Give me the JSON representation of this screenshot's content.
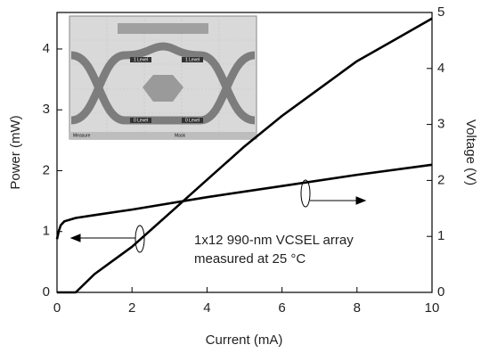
{
  "chart_data": {
    "type": "line",
    "x_label": "Current (mA)",
    "y_label": "Power (mW)",
    "y2_label": "Voltage (V)",
    "annotation": [
      "1x12 990-nm VCSEL array",
      "measured at 25 °C"
    ],
    "inset_labels": [
      "1 Level",
      "1 Level",
      "0 Level",
      "0 Level",
      "Measure",
      "Mask"
    ],
    "xlim": [
      0,
      10
    ],
    "xticks": [
      0,
      2,
      4,
      6,
      8,
      10
    ],
    "ylim": [
      0,
      4.6
    ],
    "yticks": [
      0,
      1,
      2,
      3,
      4
    ],
    "y2lim": [
      0,
      5
    ],
    "y2ticks": [
      0,
      1,
      2,
      3,
      4,
      5
    ],
    "series": [
      {
        "color": "#000000",
        "x": [
          0,
          0.5,
          1,
          2,
          3,
          4,
          5,
          6,
          7,
          8,
          9,
          10
        ],
        "values": [
          0,
          0,
          0.3,
          0.75,
          1.3,
          1.85,
          2.4,
          2.9,
          3.35,
          3.8,
          4.15,
          4.5
        ]
      },
      {
        "color": "#000000",
        "axis": "y2",
        "x": [
          0,
          0.05,
          0.1,
          0.2,
          0.5,
          1,
          2,
          4,
          6,
          8,
          10
        ],
        "values": [
          0.95,
          1.1,
          1.2,
          1.27,
          1.33,
          1.38,
          1.48,
          1.7,
          1.9,
          2.1,
          2.28
        ]
      }
    ]
  }
}
